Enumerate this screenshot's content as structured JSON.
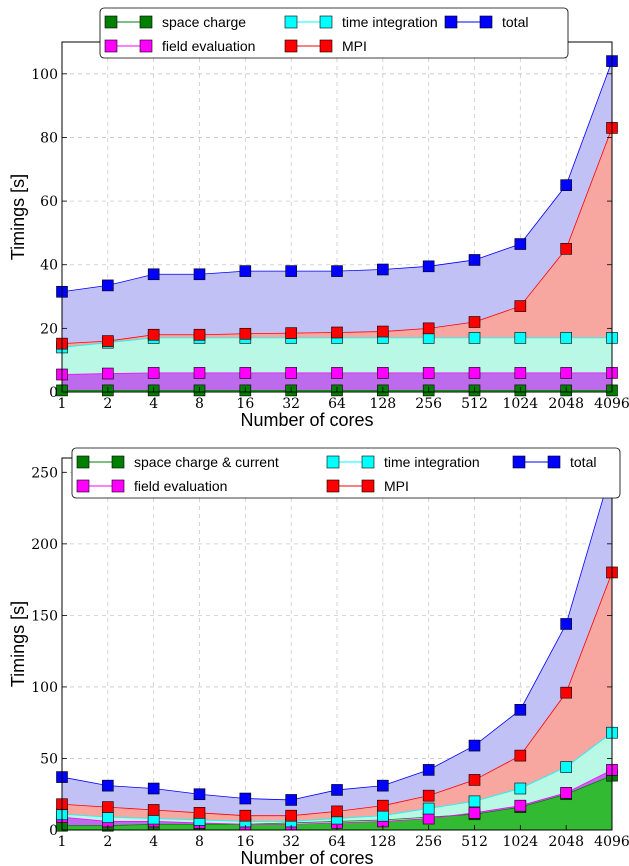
{
  "chart_data": [
    {
      "type": "area",
      "xlabel": "Number of cores",
      "ylabel": "Timings [s]",
      "categories": [
        "1",
        "2",
        "4",
        "8",
        "16",
        "32",
        "64",
        "128",
        "256",
        "512",
        "1024",
        "2048",
        "4096"
      ],
      "ylim": [
        0,
        110
      ],
      "yticks": [
        0,
        20,
        40,
        60,
        80,
        100
      ],
      "grid": true,
      "legend_position": "top",
      "series": [
        {
          "name": "space charge",
          "color": "#007f00",
          "values": [
            0.5,
            0.5,
            0.5,
            0.5,
            0.5,
            0.5,
            0.5,
            0.5,
            0.5,
            0.5,
            0.5,
            0.5,
            0.5
          ]
        },
        {
          "name": "field evaluation",
          "color": "#ff00ff",
          "values": [
            5.5,
            5.8,
            6,
            6,
            6,
            6,
            6,
            6,
            6,
            6,
            6,
            6,
            6
          ]
        },
        {
          "name": "time integration",
          "color": "#00ffff",
          "values": [
            14,
            15.5,
            17,
            17,
            17,
            17,
            17,
            17,
            17,
            17,
            17,
            17,
            17
          ]
        },
        {
          "name": "MPI",
          "color": "#ff0000",
          "values": [
            15.2,
            16,
            18,
            18,
            18.3,
            18.5,
            18.7,
            19,
            20,
            22,
            27,
            45,
            83
          ]
        },
        {
          "name": "total",
          "color": "#0000ff",
          "values": [
            31.5,
            33.5,
            37,
            37,
            38,
            38,
            38,
            38.5,
            39.5,
            41.5,
            46.5,
            65,
            104
          ]
        }
      ]
    },
    {
      "type": "area",
      "xlabel": "Number of cores",
      "ylabel": "Timings [s]",
      "categories": [
        "1",
        "2",
        "4",
        "8",
        "16",
        "32",
        "64",
        "128",
        "256",
        "512",
        "1024",
        "2048",
        "4096"
      ],
      "ylim": [
        0,
        260
      ],
      "yticks": [
        0,
        50,
        100,
        150,
        200,
        250
      ],
      "grid": true,
      "legend_position": "top",
      "series": [
        {
          "name": "space charge & current",
          "color": "#007f00",
          "values": [
            3,
            3,
            4,
            4,
            4,
            5,
            6,
            7,
            9,
            11,
            16,
            25,
            38
          ]
        },
        {
          "name": "field evaluation",
          "color": "#ff00ff",
          "values": [
            9,
            6,
            6,
            5,
            4,
            4,
            5,
            6,
            8,
            12,
            17,
            26,
            42
          ]
        },
        {
          "name": "time integration",
          "color": "#00ffff",
          "values": [
            11,
            9,
            8,
            7,
            6,
            6,
            8,
            10,
            15,
            20,
            29,
            44,
            68
          ]
        },
        {
          "name": "MPI",
          "color": "#ff0000",
          "values": [
            18,
            16,
            14,
            12,
            10,
            10,
            13,
            17,
            24,
            35,
            52,
            96,
            180
          ]
        },
        {
          "name": "total",
          "color": "#0000ff",
          "values": [
            37,
            31,
            29,
            25,
            22,
            21,
            28,
            31,
            42,
            59,
            84,
            144,
            253
          ]
        }
      ]
    }
  ]
}
